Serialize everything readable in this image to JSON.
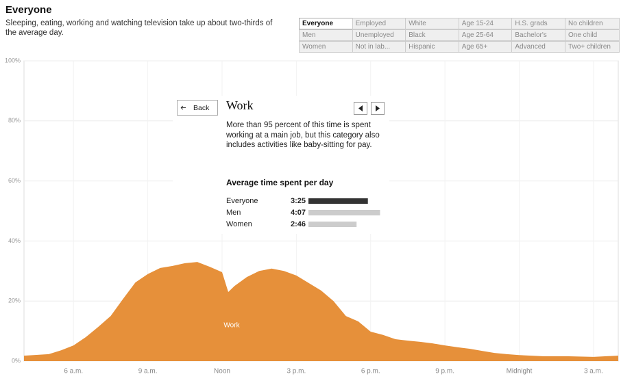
{
  "header": {
    "title": "Everyone",
    "subtitle": "Sleeping, eating, working and watching television take up about two-thirds of the average day."
  },
  "filters": {
    "rows": [
      [
        "Everyone",
        "Employed",
        "White",
        "Age 15-24",
        "H.S. grads",
        "No children"
      ],
      [
        "Men",
        "Unemployed",
        "Black",
        "Age 25-64",
        "Bachelor's",
        "One child"
      ],
      [
        "Women",
        "Not in lab...",
        "Hispanic",
        "Age 65+",
        "Advanced",
        "Two+ children"
      ]
    ],
    "selected": [
      0,
      0
    ]
  },
  "panel": {
    "back": "Back",
    "title": "Work",
    "description": "More than 95 percent of this time is spent working at a main job, but this category also includes activities like baby-sitting for pay."
  },
  "chart_data": [
    {
      "type": "area",
      "x": [
        4,
        5,
        5.5,
        6,
        6.5,
        7,
        7.5,
        8,
        8.5,
        9,
        9.5,
        10,
        10.5,
        11,
        11.5,
        12,
        12.25,
        12.5,
        13,
        13.5,
        14,
        14.5,
        15,
        15.5,
        16,
        16.5,
        17,
        17.5,
        18,
        18.5,
        19,
        19.5,
        20,
        20.5,
        21,
        21.5,
        22,
        22.5,
        23,
        23.5,
        24,
        25,
        26,
        27,
        28
      ],
      "series": [
        {
          "name": "Work",
          "color": "#e6903a",
          "values": [
            1.8,
            2.3,
            3.6,
            5.2,
            8,
            11.4,
            15,
            20.7,
            26.2,
            29,
            31,
            31.7,
            32.6,
            33,
            31.4,
            29.6,
            23,
            25,
            28,
            30,
            30.8,
            30,
            28.5,
            26,
            23.5,
            20,
            15,
            13.2,
            9.8,
            8.7,
            7.3,
            6.8,
            6.4,
            5.9,
            5.2,
            4.6,
            4.1,
            3.4,
            2.7,
            2.3,
            2,
            1.6,
            1.6,
            1.4,
            1.8
          ]
        }
      ],
      "xlim": [
        4,
        28
      ],
      "xticks": [
        {
          "value": 6,
          "label": "6 a.m."
        },
        {
          "value": 9,
          "label": "9 a.m."
        },
        {
          "value": 12,
          "label": "Noon"
        },
        {
          "value": 15,
          "label": "3 p.m."
        },
        {
          "value": 18,
          "label": "6 p.m."
        },
        {
          "value": 21,
          "label": "9 p.m."
        },
        {
          "value": 24,
          "label": "Midnight"
        },
        {
          "value": 27,
          "label": "3 a.m."
        }
      ],
      "ylim": [
        0,
        100
      ],
      "yticks": [
        {
          "value": 0,
          "label": "0%"
        },
        {
          "value": 20,
          "label": "20%"
        },
        {
          "value": 40,
          "label": "40%"
        },
        {
          "value": 60,
          "label": "60%"
        },
        {
          "value": 80,
          "label": "80%"
        },
        {
          "value": 100,
          "label": "100%"
        }
      ],
      "grid": true
    },
    {
      "type": "hbar",
      "title": "Average time spent per day",
      "categories": [
        "Everyone",
        "Men",
        "Women"
      ],
      "values": [
        205,
        247,
        166
      ],
      "value_labels": [
        "3:25",
        "4:07",
        "2:46"
      ],
      "colors": [
        "#333333",
        "#cccccc",
        "#cccccc"
      ]
    }
  ]
}
